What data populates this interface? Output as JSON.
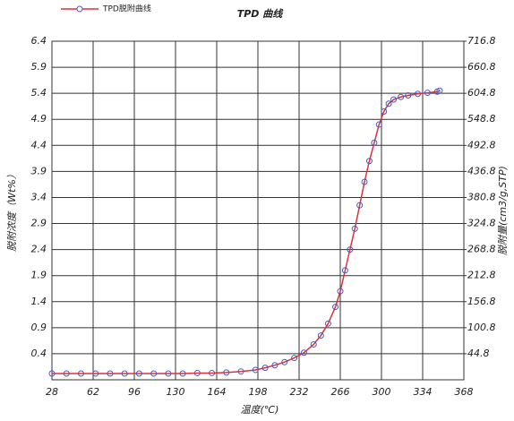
{
  "chart_data": {
    "type": "line",
    "title": "TPD 曲线",
    "x_label": "温度(℃)",
    "y_label": "脱附浓度（Wt%）",
    "y2_label": "脱附量(cm3/g,STP)",
    "xlim": [
      28,
      368
    ],
    "xticks": [
      28,
      62,
      96,
      130,
      164,
      198,
      232,
      266,
      300,
      334,
      368
    ],
    "ylim": [
      -0.1,
      6.4
    ],
    "yticks": [
      0.4,
      0.9,
      1.4,
      1.9,
      2.4,
      2.9,
      3.4,
      3.9,
      4.4,
      4.9,
      5.4,
      5.9,
      6.4
    ],
    "y2lim": [
      -11.2,
      716.8
    ],
    "y2ticks": [
      44.8,
      100.8,
      156.8,
      212.8,
      268.8,
      324.8,
      380.8,
      436.8,
      492.8,
      548.8,
      604.8,
      660.8,
      716.8
    ],
    "grid": true,
    "series": [
      {
        "name": "TPD脱附曲线",
        "color": "#e0303a",
        "marker_color": "#4a5bc0",
        "x": [
          28,
          40,
          52,
          64,
          76,
          88,
          100,
          112,
          124,
          136,
          148,
          160,
          172,
          184,
          196,
          204,
          212,
          220,
          228,
          236,
          244,
          250,
          256,
          262,
          266,
          270,
          274,
          278,
          282,
          286,
          290,
          294,
          298,
          302,
          306,
          310,
          316,
          322,
          330,
          338,
          346,
          348
        ],
        "values": [
          0.02,
          0.02,
          0.02,
          0.02,
          0.02,
          0.02,
          0.02,
          0.02,
          0.02,
          0.02,
          0.03,
          0.03,
          0.04,
          0.06,
          0.09,
          0.13,
          0.18,
          0.24,
          0.32,
          0.42,
          0.58,
          0.75,
          0.98,
          1.3,
          1.6,
          2.0,
          2.4,
          2.8,
          3.25,
          3.7,
          4.1,
          4.45,
          4.8,
          5.05,
          5.2,
          5.28,
          5.33,
          5.36,
          5.39,
          5.41,
          5.43,
          5.45
        ]
      }
    ]
  }
}
